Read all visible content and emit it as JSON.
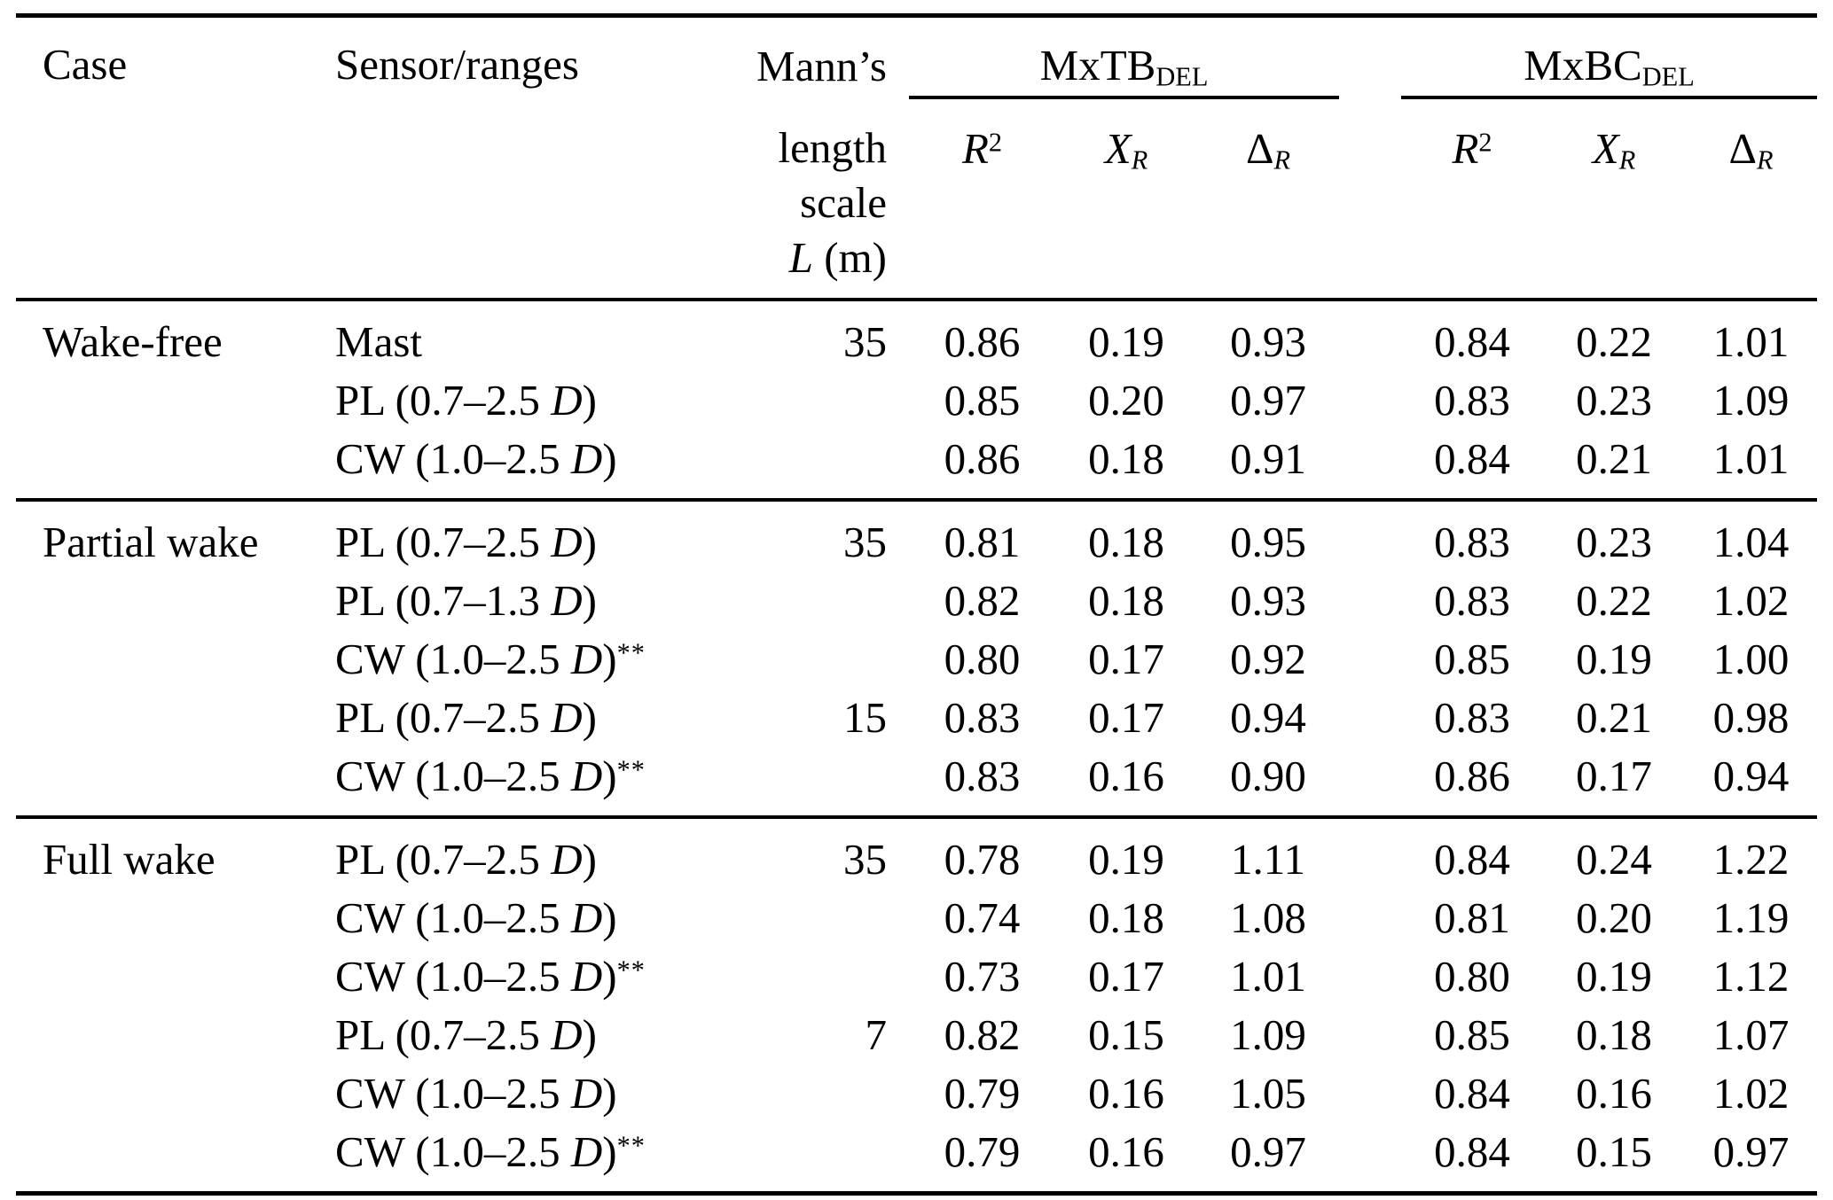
{
  "meta": {
    "background_color": "#ffffff",
    "text_color": "#000000",
    "rule_color": "#000000"
  },
  "header": {
    "case": "Case",
    "sensor": "Sensor/ranges",
    "mann": {
      "line1": "Mann’s",
      "line2": "length",
      "line3": "scale",
      "symbol": "L",
      "unit": " (m)"
    },
    "groups": [
      {
        "main": "MxTB",
        "sub": "DEL"
      },
      {
        "main": "MxBC",
        "sub": "DEL"
      }
    ],
    "metrics": [
      {
        "base": "R",
        "sup": "2",
        "sub": ""
      },
      {
        "base": "X",
        "sup": "",
        "sub": "R"
      },
      {
        "base": "Δ",
        "sup": "",
        "sub": "R"
      }
    ]
  },
  "sections": [
    {
      "case": "Wake-free",
      "rows": [
        {
          "sensor_pre": "Mast",
          "sensor_d": "",
          "sensor_post": "",
          "sensor_sup": "",
          "length_scale": "35",
          "mxtb": [
            "0.86",
            "0.19",
            "0.93"
          ],
          "mxbc": [
            "0.84",
            "0.22",
            "1.01"
          ]
        },
        {
          "sensor_pre": "PL (0.7–2.5 ",
          "sensor_d": "D",
          "sensor_post": ")",
          "sensor_sup": "",
          "length_scale": "",
          "mxtb": [
            "0.85",
            "0.20",
            "0.97"
          ],
          "mxbc": [
            "0.83",
            "0.23",
            "1.09"
          ]
        },
        {
          "sensor_pre": "CW (1.0–2.5 ",
          "sensor_d": "D",
          "sensor_post": ")",
          "sensor_sup": "",
          "length_scale": "",
          "mxtb": [
            "0.86",
            "0.18",
            "0.91"
          ],
          "mxbc": [
            "0.84",
            "0.21",
            "1.01"
          ]
        }
      ]
    },
    {
      "case": "Partial wake",
      "rows": [
        {
          "sensor_pre": "PL (0.7–2.5 ",
          "sensor_d": "D",
          "sensor_post": ")",
          "sensor_sup": "",
          "length_scale": "35",
          "mxtb": [
            "0.81",
            "0.18",
            "0.95"
          ],
          "mxbc": [
            "0.83",
            "0.23",
            "1.04"
          ]
        },
        {
          "sensor_pre": "PL (0.7–1.3 ",
          "sensor_d": "D",
          "sensor_post": ")",
          "sensor_sup": "",
          "length_scale": "",
          "mxtb": [
            "0.82",
            "0.18",
            "0.93"
          ],
          "mxbc": [
            "0.83",
            "0.22",
            "1.02"
          ]
        },
        {
          "sensor_pre": "CW (1.0–2.5 ",
          "sensor_d": "D",
          "sensor_post": ")",
          "sensor_sup": "**",
          "length_scale": "",
          "mxtb": [
            "0.80",
            "0.17",
            "0.92"
          ],
          "mxbc": [
            "0.85",
            "0.19",
            "1.00"
          ]
        },
        {
          "sensor_pre": "PL (0.7–2.5 ",
          "sensor_d": "D",
          "sensor_post": ")",
          "sensor_sup": "",
          "length_scale": "15",
          "mxtb": [
            "0.83",
            "0.17",
            "0.94"
          ],
          "mxbc": [
            "0.83",
            "0.21",
            "0.98"
          ]
        },
        {
          "sensor_pre": "CW (1.0–2.5 ",
          "sensor_d": "D",
          "sensor_post": ")",
          "sensor_sup": "**",
          "length_scale": "",
          "mxtb": [
            "0.83",
            "0.16",
            "0.90"
          ],
          "mxbc": [
            "0.86",
            "0.17",
            "0.94"
          ]
        }
      ]
    },
    {
      "case": "Full wake",
      "rows": [
        {
          "sensor_pre": "PL (0.7–2.5 ",
          "sensor_d": "D",
          "sensor_post": ")",
          "sensor_sup": "",
          "length_scale": "35",
          "mxtb": [
            "0.78",
            "0.19",
            "1.11"
          ],
          "mxbc": [
            "0.84",
            "0.24",
            "1.22"
          ]
        },
        {
          "sensor_pre": "CW (1.0–2.5 ",
          "sensor_d": "D",
          "sensor_post": ")",
          "sensor_sup": "",
          "length_scale": "",
          "mxtb": [
            "0.74",
            "0.18",
            "1.08"
          ],
          "mxbc": [
            "0.81",
            "0.20",
            "1.19"
          ]
        },
        {
          "sensor_pre": "CW (1.0–2.5 ",
          "sensor_d": "D",
          "sensor_post": ")",
          "sensor_sup": "**",
          "length_scale": "",
          "mxtb": [
            "0.73",
            "0.17",
            "1.01"
          ],
          "mxbc": [
            "0.80",
            "0.19",
            "1.12"
          ]
        },
        {
          "sensor_pre": "PL (0.7–2.5 ",
          "sensor_d": "D",
          "sensor_post": ")",
          "sensor_sup": "",
          "length_scale": "7",
          "mxtb": [
            "0.82",
            "0.15",
            "1.09"
          ],
          "mxbc": [
            "0.85",
            "0.18",
            "1.07"
          ]
        },
        {
          "sensor_pre": "CW (1.0–2.5 ",
          "sensor_d": "D",
          "sensor_post": ")",
          "sensor_sup": "",
          "length_scale": "",
          "mxtb": [
            "0.79",
            "0.16",
            "1.05"
          ],
          "mxbc": [
            "0.84",
            "0.16",
            "1.02"
          ]
        },
        {
          "sensor_pre": "CW (1.0–2.5 ",
          "sensor_d": "D",
          "sensor_post": ")",
          "sensor_sup": "**",
          "length_scale": "",
          "mxtb": [
            "0.79",
            "0.16",
            "0.97"
          ],
          "mxbc": [
            "0.84",
            "0.15",
            "0.97"
          ]
        }
      ]
    }
  ]
}
